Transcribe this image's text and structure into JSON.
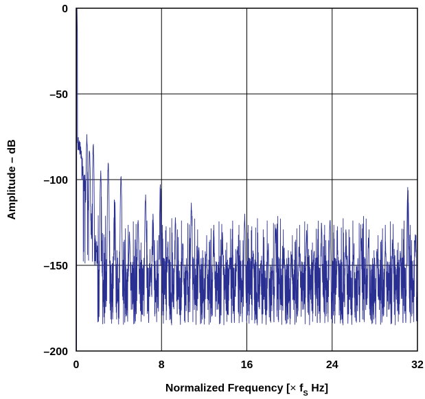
{
  "chart_data": {
    "type": "line",
    "title": "",
    "xlabel": {
      "main": "Normalized Frequency [",
      "times": "×",
      "f": " f",
      "sub": "S",
      "unit": " Hz]"
    },
    "ylabel": "Amplitude – dB",
    "xlim": [
      0,
      32
    ],
    "ylim": [
      -200,
      0
    ],
    "x_ticks": [
      0,
      8,
      16,
      24,
      32
    ],
    "y_ticks": [
      0,
      -50,
      -100,
      -150,
      -200
    ],
    "y_tick_labels": [
      "0",
      "–50",
      "–100",
      "–150",
      "–200"
    ],
    "grid": true,
    "series": [
      {
        "color": "#2a2f92",
        "fundamental": {
          "x": 0.08,
          "y": -2
        },
        "harmonic_peaks": [
          {
            "x": 1.0,
            "y": -73
          },
          {
            "x": 1.25,
            "y": -80
          },
          {
            "x": 1.6,
            "y": -78
          },
          {
            "x": 2.3,
            "y": -94
          },
          {
            "x": 3.0,
            "y": -89
          },
          {
            "x": 3.6,
            "y": -108
          },
          {
            "x": 4.2,
            "y": -97
          },
          {
            "x": 5.0,
            "y": -130
          },
          {
            "x": 5.8,
            "y": -121
          },
          {
            "x": 6.5,
            "y": -108
          },
          {
            "x": 7.2,
            "y": -118
          },
          {
            "x": 7.9,
            "y": -100
          },
          {
            "x": 8.6,
            "y": -134
          },
          {
            "x": 9.3,
            "y": -121
          },
          {
            "x": 10.0,
            "y": -136
          },
          {
            "x": 10.8,
            "y": -113
          },
          {
            "x": 11.5,
            "y": -137
          },
          {
            "x": 12.2,
            "y": -139
          },
          {
            "x": 12.9,
            "y": -127
          },
          {
            "x": 13.7,
            "y": -129
          },
          {
            "x": 14.4,
            "y": -145
          },
          {
            "x": 15.1,
            "y": -138
          },
          {
            "x": 15.8,
            "y": -119
          },
          {
            "x": 16.6,
            "y": -139
          },
          {
            "x": 17.3,
            "y": -148
          },
          {
            "x": 18.0,
            "y": -138
          },
          {
            "x": 18.7,
            "y": -127
          },
          {
            "x": 19.5,
            "y": -139
          },
          {
            "x": 20.2,
            "y": -143
          },
          {
            "x": 20.9,
            "y": -137
          },
          {
            "x": 21.6,
            "y": -129
          },
          {
            "x": 22.3,
            "y": -139
          },
          {
            "x": 23.0,
            "y": -125
          },
          {
            "x": 23.8,
            "y": -122
          },
          {
            "x": 24.5,
            "y": -137
          },
          {
            "x": 25.3,
            "y": -128
          },
          {
            "x": 26.0,
            "y": -142
          },
          {
            "x": 26.7,
            "y": -133
          },
          {
            "x": 27.4,
            "y": -132
          },
          {
            "x": 28.2,
            "y": -139
          },
          {
            "x": 29.0,
            "y": -134
          },
          {
            "x": 29.7,
            "y": -137
          },
          {
            "x": 30.4,
            "y": -141
          },
          {
            "x": 31.1,
            "y": -103
          },
          {
            "x": 31.8,
            "y": -131
          }
        ],
        "noise_floor": {
          "min": -200,
          "max": -150
        }
      }
    ]
  }
}
